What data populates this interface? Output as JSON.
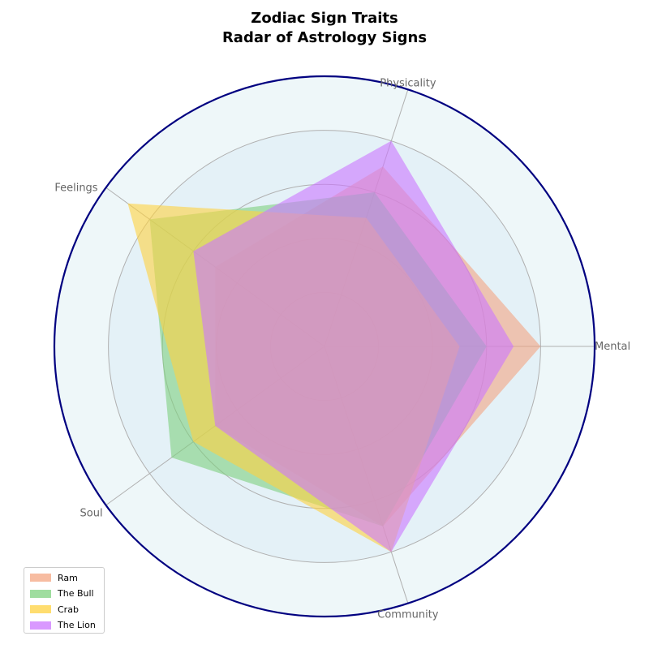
{
  "chart_data": {
    "type": "radar",
    "title": "Zodiac Sign Traits",
    "subtitle": "Radar of Astrology Signs",
    "axes": [
      "Mental",
      "Physicality",
      "Feelings",
      "Soul",
      "Community"
    ],
    "rlim": [
      0,
      10
    ],
    "rticks": [
      2,
      4,
      6,
      8,
      10
    ],
    "grid": true,
    "legend_position": "lower-left",
    "series": [
      {
        "name": "Ram",
        "values": [
          8,
          7,
          5,
          5,
          7
        ],
        "color": "#f4a582"
      },
      {
        "name": "The Bull",
        "values": [
          6,
          6,
          8,
          7,
          7
        ],
        "color": "#7fd17f"
      },
      {
        "name": "Crab",
        "values": [
          5,
          5,
          9,
          6,
          8
        ],
        "color": "#ffd23f"
      },
      {
        "name": "The Lion",
        "values": [
          7,
          8,
          6,
          5,
          8
        ],
        "color": "#cc77ff"
      }
    ],
    "colors": {
      "outer_ring": "#000080",
      "background": "#eef7f9",
      "inner_fill": "#e4f1f7",
      "grid": "#b0b0b0"
    }
  }
}
